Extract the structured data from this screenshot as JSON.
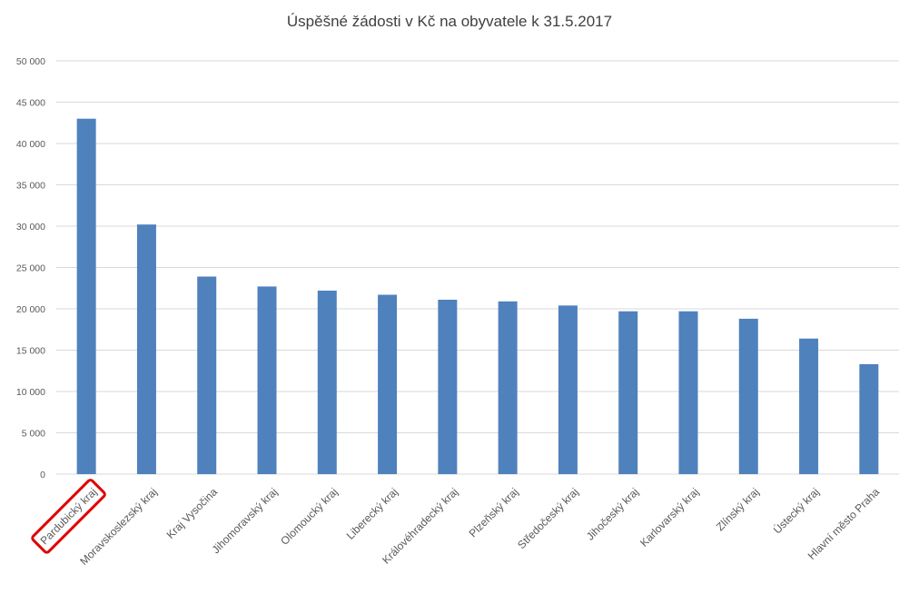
{
  "chart_data": {
    "type": "bar",
    "title": "Úspěšné žádosti v Kč na obyvatele k 31.5.2017",
    "xlabel": "",
    "ylabel": "",
    "ylim": [
      0,
      50000
    ],
    "yticks": [
      0,
      5000,
      10000,
      15000,
      20000,
      25000,
      30000,
      35000,
      40000,
      45000,
      50000
    ],
    "ytick_labels": [
      "0",
      "5 000",
      "10 000",
      "15 000",
      "20 000",
      "25 000",
      "30 000",
      "35 000",
      "40 000",
      "45 000",
      "50 000"
    ],
    "grid": true,
    "legend": "none",
    "bar_color": "#4f81bd",
    "highlight_color": "#e00000",
    "highlighted_category": "Pardubický kraj",
    "categories": [
      "Pardubický kraj",
      "Moravskoslezský kraj",
      "Kraj Vysočina",
      "Jihomoravský kraj",
      "Olomoucký kraj",
      "Liberecký kraj",
      "Královéhradecký kraj",
      "Plzeňský kraj",
      "Středočeský kraj",
      "Jihočeský kraj",
      "Karlovarský kraj",
      "Zlínský kraj",
      "Ústecký kraj",
      "Hlavní město Praha"
    ],
    "values": [
      43000,
      30200,
      23900,
      22700,
      22200,
      21700,
      21100,
      20900,
      20400,
      19700,
      19700,
      18800,
      16400,
      13300
    ]
  }
}
